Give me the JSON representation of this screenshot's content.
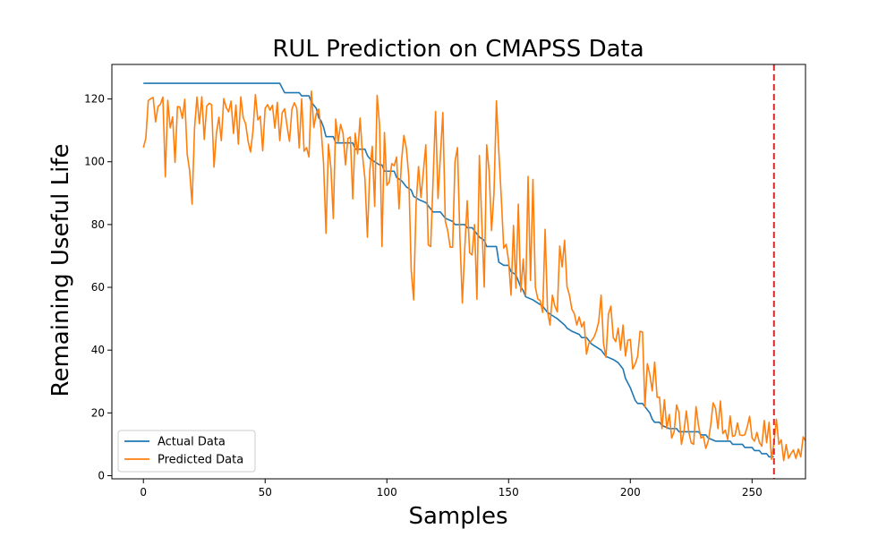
{
  "chart_data": {
    "type": "line",
    "title": "RUL Prediction on CMAPSS Data",
    "xlabel": "Samples",
    "ylabel": "Remaining Useful Life",
    "xlim": [
      -12.95,
      271.95
    ],
    "ylim": [
      -1.0,
      131.0
    ],
    "xticks": [
      0,
      50,
      100,
      150,
      200,
      250
    ],
    "yticks": [
      0,
      20,
      40,
      60,
      80,
      100,
      120
    ],
    "grid": false,
    "legend": "lower-left",
    "colors": {
      "actual": "#1f77b4",
      "predicted": "#ff7f0e",
      "marker_line": "#d62728"
    },
    "vline": {
      "x": 259,
      "style": "dashed"
    },
    "series": [
      {
        "name": "Actual Data",
        "points": [
          [
            0,
            125
          ],
          [
            56,
            125
          ],
          [
            58,
            122
          ],
          [
            64,
            122
          ],
          [
            65,
            121
          ],
          [
            68,
            121
          ],
          [
            69,
            119
          ],
          [
            71,
            117
          ],
          [
            72,
            114
          ],
          [
            73,
            113
          ],
          [
            74,
            111
          ],
          [
            75,
            108
          ],
          [
            78,
            108
          ],
          [
            79,
            106
          ],
          [
            86,
            106
          ],
          [
            87,
            104
          ],
          [
            91,
            104
          ],
          [
            92,
            102
          ],
          [
            93,
            101
          ],
          [
            95,
            100
          ],
          [
            97,
            99
          ],
          [
            98,
            99
          ],
          [
            99,
            97
          ],
          [
            103,
            97
          ],
          [
            104,
            95
          ],
          [
            106,
            94
          ],
          [
            107,
            93
          ],
          [
            108,
            92
          ],
          [
            110,
            91
          ],
          [
            111,
            89
          ],
          [
            113,
            88
          ],
          [
            116,
            87
          ],
          [
            117,
            86
          ],
          [
            118,
            85
          ],
          [
            119,
            84
          ],
          [
            122,
            84
          ],
          [
            124,
            82
          ],
          [
            127,
            81
          ],
          [
            128,
            80
          ],
          [
            132,
            80
          ],
          [
            133,
            79
          ],
          [
            135,
            79
          ],
          [
            137,
            77
          ],
          [
            138,
            76
          ],
          [
            140,
            75
          ],
          [
            141,
            73
          ],
          [
            145,
            73
          ],
          [
            146,
            68
          ],
          [
            148,
            67
          ],
          [
            150,
            67
          ],
          [
            151,
            65
          ],
          [
            153,
            64
          ],
          [
            154,
            62
          ],
          [
            155,
            60
          ],
          [
            156,
            59
          ],
          [
            157,
            57
          ],
          [
            160,
            56
          ],
          [
            162,
            55
          ],
          [
            164,
            54
          ],
          [
            165,
            53
          ],
          [
            166,
            52
          ],
          [
            168,
            51
          ],
          [
            170,
            50
          ],
          [
            173,
            48
          ],
          [
            174,
            47
          ],
          [
            176,
            46
          ],
          [
            179,
            45
          ],
          [
            180,
            44
          ],
          [
            182,
            44
          ],
          [
            184,
            42
          ],
          [
            186,
            41
          ],
          [
            188,
            40
          ],
          [
            190,
            38
          ],
          [
            193,
            37
          ],
          [
            195,
            36
          ],
          [
            197,
            34
          ],
          [
            198,
            31
          ],
          [
            200,
            28
          ],
          [
            201,
            26
          ],
          [
            202,
            24
          ],
          [
            203,
            23
          ],
          [
            205,
            23
          ],
          [
            206,
            22
          ],
          [
            207,
            21
          ],
          [
            208,
            20
          ],
          [
            209,
            18
          ],
          [
            210,
            17
          ],
          [
            212,
            17
          ],
          [
            213,
            16
          ],
          [
            216,
            15
          ],
          [
            219,
            15
          ],
          [
            220,
            14
          ],
          [
            228,
            14
          ],
          [
            229,
            13
          ],
          [
            231,
            13
          ],
          [
            232,
            12
          ],
          [
            235,
            11
          ],
          [
            241,
            11
          ],
          [
            242,
            10
          ],
          [
            246,
            10
          ],
          [
            247,
            9
          ],
          [
            250,
            9
          ],
          [
            251,
            8
          ],
          [
            253,
            8
          ],
          [
            254,
            7
          ],
          [
            256,
            7
          ],
          [
            257,
            6
          ],
          [
            259,
            6
          ]
        ]
      },
      {
        "name": "Predicted Data",
        "values": [
          104.5,
          107.5,
          119.5,
          120.1,
          120.5,
          112.7,
          117.6,
          118.3,
          120.6,
          95.2,
          119.6,
          110.8,
          114.3,
          99.8,
          117.6,
          117.4,
          113.8,
          119.9,
          102.3,
          97.1,
          86.5,
          110.6,
          120.6,
          112.1,
          120.7,
          107.1,
          117.7,
          118.6,
          118.2,
          98.3,
          109.2,
          114.2,
          106.7,
          120.1,
          117.3,
          115.9,
          119.3,
          109.0,
          118.1,
          105.6,
          120.7,
          114.0,
          112.1,
          106.5,
          103.1,
          109.8,
          121.4,
          113.3,
          114.5,
          103.5,
          117.0,
          118.2,
          116.4,
          118.0,
          110.7,
          118.9,
          106.7,
          115.6,
          116.9,
          111.4,
          106.5,
          116.7,
          118.8,
          117.0,
          104.4,
          120.0,
          103.4,
          104.5,
          101.5,
          122.5,
          110.9,
          115.3,
          116.8,
          110.2,
          99.5,
          77.2,
          105.6,
          98.2,
          81.9,
          113.6,
          106.3,
          111.9,
          109.1,
          99.0,
          107.4,
          107.9,
          88.2,
          109.1,
          102.5,
          113.9,
          102.0,
          94.5,
          76.0,
          97.3,
          104.9,
          85.8,
          121.2,
          111.7,
          73.0,
          109.3,
          92.5,
          93.5,
          99.4,
          98.7,
          101.5,
          85.0,
          100.1,
          108.4,
          104.3,
          95.5,
          65.5,
          56.0,
          86.5,
          98.5,
          88.6,
          97.0,
          105.4,
          73.5,
          73.0,
          94.6,
          116.0,
          88.3,
          102.1,
          115.7,
          81.1,
          78.0,
          72.8,
          72.8,
          100.1,
          104.5,
          76.0,
          55.0,
          72.4,
          87.6,
          71.0,
          70.3,
          80.0,
          56.2,
          102.0,
          80.5,
          60.1,
          105.4,
          97.0,
          78.1,
          90.0,
          119.4,
          103.0,
          88.5,
          72.5,
          73.7,
          68.5,
          57.5,
          79.7,
          59.7,
          86.5,
          58.6,
          69.0,
          57.5,
          95.3,
          62.2,
          94.4,
          60.0,
          56.3,
          55.8,
          52.0,
          78.5,
          52.3,
          48.0,
          57.5,
          54.0,
          52.2,
          73.2,
          66.5,
          75.0,
          60.2,
          57.5,
          53.0,
          51.6,
          48.0,
          50.6,
          47.4,
          49.0,
          38.7,
          42.3,
          43.0,
          44.0,
          46.0,
          49.0,
          57.5,
          42.0,
          37.7,
          51.5,
          54.0,
          44.0,
          42.7,
          47.0,
          40.0,
          48.0,
          38.1,
          43.2,
          43.4,
          34.0,
          35.6,
          38.0,
          46.0,
          45.8,
          22.0,
          35.7,
          32.2,
          27.0,
          36.2,
          25.0,
          25.0,
          15.0,
          24.2,
          15.0,
          19.5,
          12.0,
          14.0,
          22.5,
          20.1,
          10.0,
          14.0,
          20.6,
          14.0,
          10.5,
          10.0,
          22.0,
          16.0,
          12.0,
          12.5,
          8.7,
          11.0,
          16.0,
          23.2,
          21.5,
          15.0,
          23.8,
          13.4,
          14.5,
          11.5,
          19.0,
          12.5,
          12.8,
          16.8,
          13.0,
          12.8,
          13.0,
          15.5,
          18.9,
          12.0,
          11.0,
          13.8,
          10.6,
          9.4,
          17.6,
          10.5,
          17.0,
          5.2,
          10.7,
          18.0,
          10.0,
          11.4,
          4.8,
          9.9,
          5.5,
          7.1,
          8.2,
          5.5,
          8.5,
          6.0,
          12.4,
          11.0,
          5.2,
          7.0
        ]
      }
    ]
  }
}
